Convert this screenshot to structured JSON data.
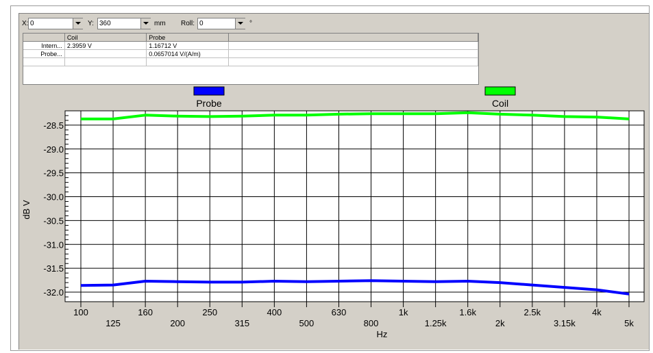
{
  "toolbar": {
    "x_label": "X:",
    "x_value": "0",
    "y_label": "Y:",
    "y_value": "360",
    "unit_mm": "mm",
    "roll_label": "Roll:",
    "roll_value": "0",
    "unit_deg": "°"
  },
  "table": {
    "headers": [
      "",
      "Coil",
      "Probe",
      ""
    ],
    "rows": [
      [
        "Intern...",
        "2.3959 V",
        "1.16712 V",
        ""
      ],
      [
        "Probe...",
        "",
        "0.0657014 V/(A/m)",
        ""
      ],
      [
        "",
        "",
        "",
        ""
      ]
    ]
  },
  "chart_data": {
    "type": "line",
    "xlabel": "Hz",
    "ylabel": "dB V",
    "categories": [
      "100",
      "125",
      "160",
      "200",
      "250",
      "315",
      "400",
      "500",
      "630",
      "800",
      "1k",
      "1.25k",
      "1.6k",
      "2k",
      "2.5k",
      "3.15k",
      "4k",
      "5k"
    ],
    "ylim": [
      -32.2,
      -28.2
    ],
    "yticks": [
      -28.5,
      -29.0,
      -29.5,
      -30.0,
      -30.5,
      -31.0,
      -31.5,
      -32.0
    ],
    "ytick_labels": [
      "-28.5",
      "-29.0",
      "-29.5",
      "-30.0",
      "-30.5",
      "-31.0",
      "-31.5",
      "-32.0"
    ],
    "grid": true,
    "legend_placement": "top",
    "series": [
      {
        "name": "Probe",
        "color": "#0000ff",
        "values": [
          -31.86,
          -31.85,
          -31.77,
          -31.78,
          -31.79,
          -31.79,
          -31.77,
          -31.78,
          -31.77,
          -31.76,
          -31.77,
          -31.78,
          -31.77,
          -31.8,
          -31.85,
          -31.9,
          -31.95,
          -32.04
        ]
      },
      {
        "name": "Coil",
        "color": "#00ff00",
        "values": [
          -28.37,
          -28.37,
          -28.29,
          -28.31,
          -28.32,
          -28.31,
          -28.29,
          -28.29,
          -28.27,
          -28.26,
          -28.26,
          -28.26,
          -28.24,
          -28.27,
          -28.29,
          -28.32,
          -28.33,
          -28.37
        ]
      }
    ]
  }
}
